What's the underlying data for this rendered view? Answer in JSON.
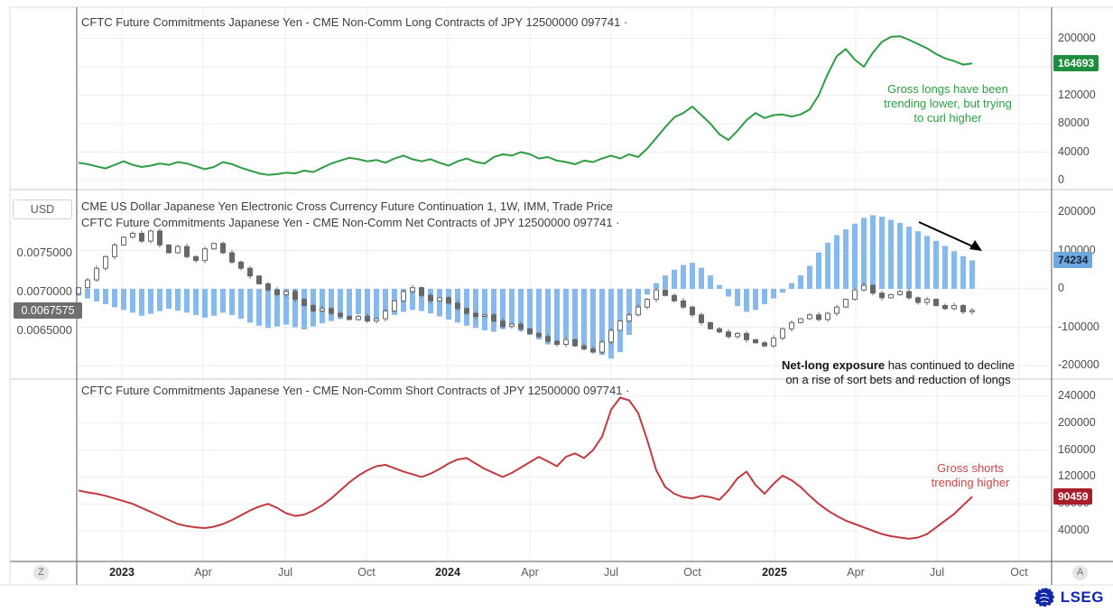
{
  "chart_data": [
    {
      "type": "line",
      "title": "CFTC Future Commitments Japanese Yen - CME Non-Comm Long Contracts of JPY 12500000 097741 ·",
      "series_name": "Non-Comm Long Contracts",
      "color": "#2e9b45",
      "ylim": [
        -15000,
        215000
      ],
      "yticks": [
        0,
        40000,
        80000,
        120000,
        160000,
        200000
      ],
      "grid": true,
      "legend_position": "none",
      "last_value": 164693,
      "badge": {
        "text": "164693",
        "bg": "#1e8e3e",
        "fg": "#ffffff"
      },
      "annotation": {
        "lines": [
          "Gross longs have been",
          "trending lower, but trying",
          "to curl higher"
        ],
        "color": "#2e9b45"
      },
      "values": [
        25000,
        23000,
        20000,
        17000,
        22000,
        27000,
        22000,
        19000,
        21000,
        24000,
        22000,
        26000,
        24000,
        20000,
        16000,
        19000,
        26000,
        23000,
        18000,
        14000,
        10000,
        8000,
        9000,
        11000,
        10000,
        14000,
        12000,
        18000,
        24000,
        28000,
        32000,
        30000,
        27000,
        29000,
        25000,
        31000,
        35000,
        30000,
        27000,
        30000,
        25000,
        21000,
        27000,
        31000,
        26000,
        24000,
        33000,
        37000,
        35000,
        40000,
        37000,
        31000,
        33000,
        28000,
        26000,
        23000,
        28000,
        26000,
        31000,
        35000,
        31000,
        37000,
        33000,
        45000,
        60000,
        75000,
        89000,
        95000,
        104000,
        92000,
        80000,
        65000,
        57000,
        70000,
        85000,
        95000,
        88000,
        92000,
        93000,
        90000,
        93000,
        100000,
        120000,
        150000,
        175000,
        185000,
        170000,
        160000,
        180000,
        195000,
        202000,
        203000,
        198000,
        192000,
        186000,
        178000,
        172000,
        168000,
        163000,
        164693
      ]
    },
    {
      "type": "candlestick_with_bars",
      "titles": [
        "CME US Dollar Japanese Yen Electronic Cross Currency Future Continuation 1, 1W, IMM, Trade Price",
        "CFTC Future Commitments Japanese Yen - CME Non-Comm Net Contracts of JPY 12500000 097741 ·"
      ],
      "bars": {
        "name": "Non-Comm Net Contracts",
        "color": "#87b9ed",
        "ylim": [
          -260000,
          260000
        ],
        "yticks": [
          -200000,
          -100000,
          0,
          100000,
          200000
        ],
        "last_value": 74234,
        "badge": {
          "text": "74234",
          "bg": "#6fa8e0",
          "fg": "#132639"
        },
        "values": [
          -18000,
          -25000,
          -33000,
          -40000,
          -48000,
          -55000,
          -62000,
          -70000,
          -65000,
          -58000,
          -52000,
          -57000,
          -62000,
          -68000,
          -75000,
          -70000,
          -62000,
          -68000,
          -78000,
          -88000,
          -96000,
          -102000,
          -98000,
          -93000,
          -100000,
          -106000,
          -98000,
          -90000,
          -84000,
          -78000,
          -72000,
          -66000,
          -72000,
          -80000,
          -75000,
          -68000,
          -60000,
          -55000,
          -58000,
          -64000,
          -72000,
          -80000,
          -88000,
          -96000,
          -102000,
          -108000,
          -112000,
          -105000,
          -98000,
          -110000,
          -120000,
          -132000,
          -145000,
          -140000,
          -130000,
          -138000,
          -148000,
          -160000,
          -172000,
          -182000,
          -165000,
          -120000,
          -60000,
          -15000,
          15000,
          35000,
          50000,
          62000,
          68000,
          55000,
          35000,
          10000,
          -20000,
          -45000,
          -60000,
          -55000,
          -40000,
          -25000,
          -10000,
          15000,
          35000,
          60000,
          95000,
          120000,
          140000,
          155000,
          170000,
          185000,
          192000,
          188000,
          180000,
          172000,
          162000,
          150000,
          138000,
          125000,
          112000,
          98000,
          85000,
          74234
        ]
      },
      "price": {
        "name": "USD/JPY weekly trade price",
        "unit": "USD",
        "up_color": "#ffffff",
        "down_color": "#64686c",
        "outline_color": "#64686c",
        "yticks_labels": [
          "0.0075000",
          "0.0070000",
          "0.0065000"
        ],
        "ytick_values": [
          0.0075,
          0.007,
          0.0065
        ],
        "last_close": 0.0067575,
        "badge": {
          "text": "0.0067575",
          "bg": "#6e6e6e",
          "fg": "#ffffff"
        },
        "closes": [
          0.00705,
          0.00715,
          0.0073,
          0.00745,
          0.0076,
          0.0077,
          0.00775,
          0.00765,
          0.00778,
          0.0076,
          0.0075,
          0.00758,
          0.00745,
          0.0074,
          0.00755,
          0.00762,
          0.0075,
          0.00738,
          0.0073,
          0.0072,
          0.0071,
          0.00702,
          0.00696,
          0.007,
          0.0069,
          0.00682,
          0.00675,
          0.00678,
          0.00672,
          0.00668,
          0.00664,
          0.00668,
          0.00662,
          0.00665,
          0.00675,
          0.00688,
          0.007,
          0.00705,
          0.00695,
          0.00688,
          0.00692,
          0.00685,
          0.00678,
          0.00672,
          0.00668,
          0.0067,
          0.00662,
          0.00655,
          0.00658,
          0.00652,
          0.00646,
          0.00642,
          0.00636,
          0.00632,
          0.00638,
          0.0063,
          0.00626,
          0.00622,
          0.00635,
          0.0065,
          0.00662,
          0.0067,
          0.0068,
          0.0069,
          0.00702,
          0.00695,
          0.00688,
          0.0068,
          0.0067,
          0.0066,
          0.00652,
          0.00648,
          0.00642,
          0.00646,
          0.00638,
          0.00634,
          0.0063,
          0.0064,
          0.00652,
          0.0066,
          0.00665,
          0.0067,
          0.00664,
          0.00672,
          0.0068,
          0.0069,
          0.00702,
          0.00708,
          0.00698,
          0.00692,
          0.00696,
          0.007,
          0.00692,
          0.00686,
          0.0069,
          0.00682,
          0.00678,
          0.00682,
          0.00674,
          0.0067575
        ]
      },
      "annotation": {
        "bold": "Net-long exposure",
        "text": " has continued to decline",
        "line2": "on a rise of sort bets and reduction of longs",
        "color": "#141414"
      },
      "arrow": {
        "present": true,
        "color": "#000000"
      }
    },
    {
      "type": "line",
      "title": "CFTC Future Commitments Japanese Yen - CME Non-Comm Short Contracts of JPY 12500000 097741 ·",
      "series_name": "Non-Comm Short Contracts",
      "color": "#bf3b41",
      "ylim": [
        25000,
        255000
      ],
      "yticks": [
        40000,
        80000,
        120000,
        160000,
        200000,
        240000
      ],
      "grid": true,
      "legend_position": "none",
      "last_value": 90459,
      "badge": {
        "text": "90459",
        "bg": "#a81e2b",
        "fg": "#ffffff"
      },
      "annotation": {
        "lines": [
          "Gross shorts",
          "trending higher"
        ],
        "color": "#c64747"
      },
      "values": [
        100000,
        97000,
        95000,
        92000,
        88000,
        84000,
        80000,
        74000,
        68000,
        62000,
        56000,
        50000,
        47000,
        45000,
        44000,
        46000,
        50000,
        56000,
        63000,
        70000,
        76000,
        80000,
        74000,
        66000,
        62000,
        64000,
        70000,
        78000,
        88000,
        100000,
        112000,
        122000,
        130000,
        136000,
        138000,
        133000,
        128000,
        124000,
        120000,
        125000,
        132000,
        140000,
        146000,
        148000,
        140000,
        132000,
        126000,
        120000,
        126000,
        134000,
        142000,
        150000,
        143000,
        136000,
        150000,
        155000,
        148000,
        160000,
        180000,
        220000,
        238000,
        234000,
        215000,
        175000,
        130000,
        105000,
        95000,
        90000,
        88000,
        92000,
        90000,
        86000,
        100000,
        118000,
        128000,
        108000,
        95000,
        110000,
        122000,
        115000,
        105000,
        92000,
        80000,
        70000,
        62000,
        55000,
        50000,
        45000,
        40000,
        35000,
        32000,
        30000,
        28000,
        30000,
        35000,
        45000,
        55000,
        65000,
        78000,
        90459
      ]
    }
  ],
  "left_axis": {
    "currency_label": "USD"
  },
  "x_axis": {
    "labels": [
      {
        "text": "2023",
        "year": true
      },
      {
        "text": "Apr"
      },
      {
        "text": "Jul"
      },
      {
        "text": "Oct"
      },
      {
        "text": "2024",
        "year": true
      },
      {
        "text": "Apr"
      },
      {
        "text": "Jul"
      },
      {
        "text": "Oct"
      },
      {
        "text": "2025",
        "year": true
      },
      {
        "text": "Apr"
      },
      {
        "text": "Jul"
      },
      {
        "text": "Oct"
      }
    ]
  },
  "buttons": {
    "zoom": "Z",
    "auto": "A"
  },
  "logo": {
    "text": "LSEG",
    "color": "#1226aa"
  }
}
